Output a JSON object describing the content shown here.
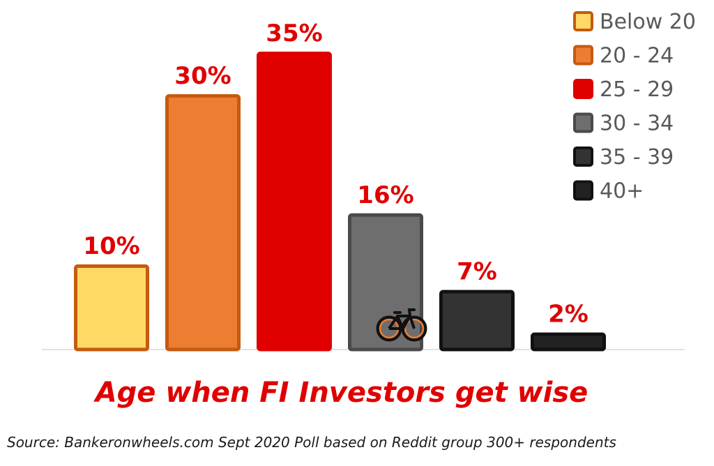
{
  "chart_data": {
    "type": "bar",
    "title": "Age when FI Investors get wise",
    "source": "Source: Bankeronwheels.com Sept 2020 Poll based on Reddit group  300+ respondents",
    "categories": [
      "Below 20",
      "20 - 24",
      "25 - 29",
      "30 - 34",
      "35 - 39",
      "40+"
    ],
    "values": [
      10,
      30,
      35,
      16,
      7,
      2
    ],
    "value_labels": [
      "10%",
      "30%",
      "35%",
      "16%",
      "7%",
      "2%"
    ],
    "unit": "%",
    "ylim": [
      0,
      35
    ],
    "grid": false,
    "legend_position": "top-right",
    "label_color": "#e00000",
    "bar_styles": [
      {
        "fill": "#ffd966",
        "stroke": "#c55a11"
      },
      {
        "fill": "#ed7d31",
        "stroke": "#c55a11"
      },
      {
        "fill": "#e00000",
        "stroke": "#e00000"
      },
      {
        "fill": "#6e6e6e",
        "stroke": "#4a4a4a"
      },
      {
        "fill": "#333333",
        "stroke": "#111111"
      },
      {
        "fill": "#222222",
        "stroke": "#111111"
      }
    ],
    "decoration_icon": "bicycle-icon"
  }
}
